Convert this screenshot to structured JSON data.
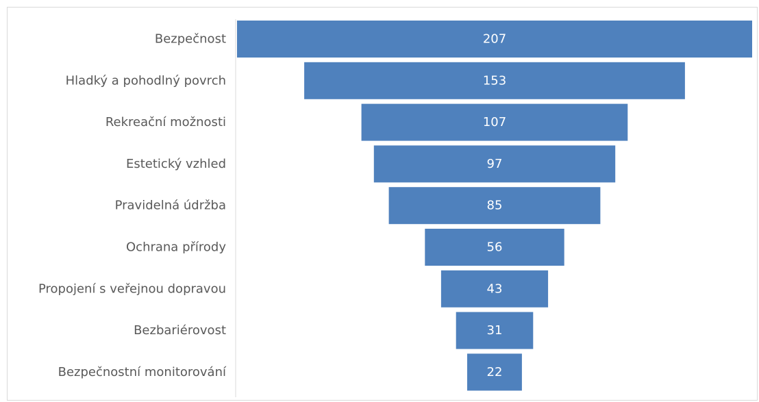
{
  "chart_data": {
    "type": "bar",
    "subtype": "funnel",
    "title": "",
    "xlabel": "",
    "ylabel": "",
    "grid": false,
    "legend": "none",
    "colors": {
      "bar": "#4f81bd",
      "label": "#595959",
      "value_label": "#ffffff",
      "axis_line": "#d9d9d9",
      "frame": "#d9d9d9"
    },
    "categories": [
      "Bezpečnost",
      "Hladký a pohodlný povrch",
      "Rekreační možnosti",
      "Estetický vzhled",
      "Pravidelná údržba",
      "Ochrana přírody",
      "Propojení s veřejnou dopravou",
      "Bezbariérovost",
      "Bezpečnostní monitorování"
    ],
    "values": [
      207,
      153,
      107,
      97,
      85,
      56,
      43,
      31,
      22
    ],
    "data_labels": [
      "207",
      "153",
      "107",
      "97",
      "85",
      "56",
      "43",
      "31",
      "22"
    ]
  }
}
